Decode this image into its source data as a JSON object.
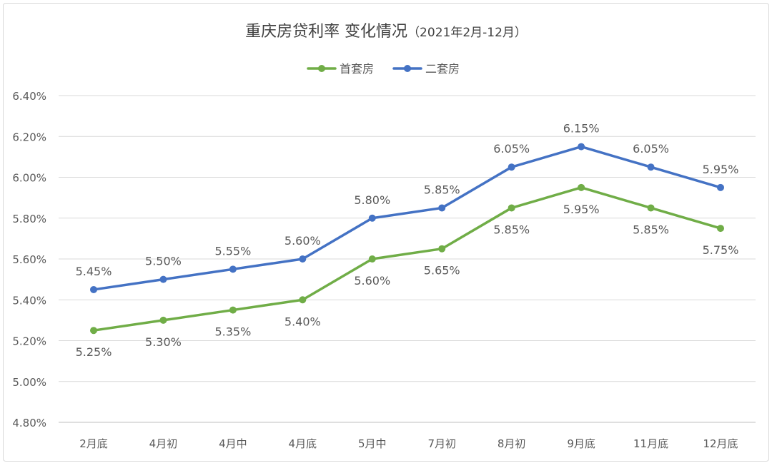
{
  "chart_data": {
    "type": "line",
    "title": "重庆房贷利率 变化情况",
    "subtitle": "（2021年2月-12月）",
    "categories": [
      "2月底",
      "4月初",
      "4月中",
      "4月底",
      "5月中",
      "7月初",
      "8月初",
      "9月底",
      "11月底",
      "12月底"
    ],
    "series": [
      {
        "name": "首套房",
        "color": "#70ad47",
        "values": [
          5.25,
          5.3,
          5.35,
          5.4,
          5.6,
          5.65,
          5.85,
          5.95,
          5.85,
          5.75
        ],
        "labels": [
          "5.25%",
          "5.30%",
          "5.35%",
          "5.40%",
          "5.60%",
          "5.65%",
          "5.85%",
          "5.95%",
          "5.85%",
          "5.75%"
        ],
        "label_position": "below"
      },
      {
        "name": "二套房",
        "color": "#4472c4",
        "values": [
          5.45,
          5.5,
          5.55,
          5.6,
          5.8,
          5.85,
          6.05,
          6.15,
          6.05,
          5.95
        ],
        "labels": [
          "5.45%",
          "5.50%",
          "5.55%",
          "5.60%",
          "5.80%",
          "5.85%",
          "6.05%",
          "6.15%",
          "6.05%",
          "5.95%"
        ],
        "label_position": "above"
      }
    ],
    "ylim": [
      4.8,
      6.4
    ],
    "yticks": [
      4.8,
      5.0,
      5.2,
      5.4,
      5.6,
      5.8,
      6.0,
      6.2,
      6.4
    ],
    "ytick_labels": [
      "4.80%",
      "5.00%",
      "5.20%",
      "5.40%",
      "5.60%",
      "5.80%",
      "6.00%",
      "6.20%",
      "6.40%"
    ],
    "grid": true,
    "legend_position": "top-center"
  }
}
